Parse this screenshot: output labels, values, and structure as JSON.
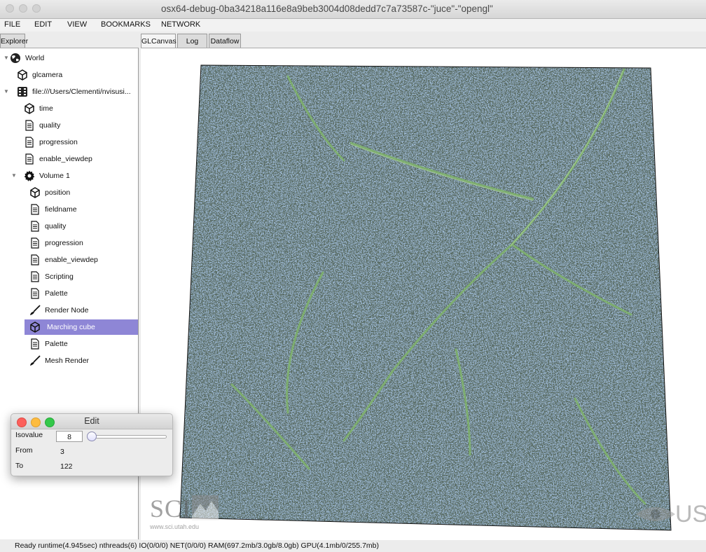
{
  "window": {
    "title": "osx64-debug-0ba34218a116e8a9beb3004d08dedd7c7a73587c-\"juce\"-\"opengl\""
  },
  "menu": [
    "FILE",
    "EDIT",
    "VIEW",
    "BOOKMARKS",
    "NETWORK"
  ],
  "explorer": {
    "tab_label": "Explorer",
    "items": [
      {
        "label": "World",
        "icon": "globe-icon"
      },
      {
        "label": "glcamera",
        "icon": "cube-icon"
      },
      {
        "label": "file:///Users/Clementi/nvisusi...",
        "icon": "dataset-icon"
      },
      {
        "label": "time",
        "icon": "cube-icon"
      },
      {
        "label": "quality",
        "icon": "document-icon"
      },
      {
        "label": "progression",
        "icon": "document-icon"
      },
      {
        "label": "enable_viewdep",
        "icon": "document-icon"
      },
      {
        "label": "Volume 1",
        "icon": "gear-icon"
      },
      {
        "label": "position",
        "icon": "cube-icon"
      },
      {
        "label": "fieldname",
        "icon": "document-icon"
      },
      {
        "label": "quality",
        "icon": "document-icon"
      },
      {
        "label": "progression",
        "icon": "document-icon"
      },
      {
        "label": "enable_viewdep",
        "icon": "document-icon"
      },
      {
        "label": "Scripting",
        "icon": "document-icon"
      },
      {
        "label": "Palette",
        "icon": "document-icon"
      },
      {
        "label": "Render Node",
        "icon": "brush-icon"
      },
      {
        "label": "Marching cube",
        "icon": "cube-icon",
        "selected": true
      },
      {
        "label": "Palette",
        "icon": "document-icon"
      },
      {
        "label": "Mesh Render",
        "icon": "brush-icon"
      }
    ]
  },
  "tabs": [
    "GLCanvas",
    "Log",
    "Dataflow"
  ],
  "edit_window": {
    "title": "Edit",
    "isovalue_label": "Isovalue",
    "isovalue": "8",
    "from_label": "From",
    "from_value": "3",
    "to_label": "To",
    "to_value": "122"
  },
  "watermark": {
    "left_text": "SCI",
    "left_subtext": "www.sci.utah.edu",
    "right_text": "US"
  },
  "status": "Ready runtime(4.945sec) nthreads(6) IO(0/0/0) NET(0/0/0) RAM(697.2mb/3.0gb/8.0gb) GPU(4.1mb/0/255.7mb)",
  "colors": {
    "selection": "#8e86d6",
    "volume_dark": "#2c3e35",
    "volume_blue": "#5c7fa8",
    "volume_green": "#7fb36a"
  }
}
